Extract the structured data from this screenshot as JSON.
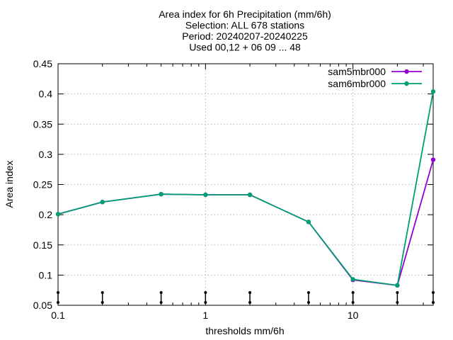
{
  "chart_data": {
    "type": "line",
    "title_lines": [
      "Area index  for 6h Precipitation (mm/6h)",
      "Selection: ALL    678 stations",
      "Period: 20240207-20240225",
      "Used 00,12 + 06 09 ... 48"
    ],
    "xlabel": "thresholds mm/6h",
    "ylabel": "Area index",
    "x_scale": "log",
    "xlim": [
      0.1,
      35
    ],
    "ylim": [
      0.05,
      0.45
    ],
    "x_ticks": [
      {
        "value": 0.1,
        "label": "0.1"
      },
      {
        "value": 1,
        "label": "1"
      },
      {
        "value": 10,
        "label": "10"
      }
    ],
    "y_ticks": [
      {
        "value": 0.05,
        "label": "0.05"
      },
      {
        "value": 0.1,
        "label": "0.1"
      },
      {
        "value": 0.15,
        "label": "0.15"
      },
      {
        "value": 0.2,
        "label": "0.2"
      },
      {
        "value": 0.25,
        "label": "0.25"
      },
      {
        "value": 0.3,
        "label": "0.3"
      },
      {
        "value": 0.35,
        "label": "0.35"
      },
      {
        "value": 0.4,
        "label": "0.4"
      },
      {
        "value": 0.45,
        "label": "0.45"
      }
    ],
    "grid": true,
    "legend_position": "top-right",
    "thresholds": [
      0.1,
      0.2,
      0.5,
      1,
      2,
      5,
      10,
      20,
      35
    ],
    "series": [
      {
        "name": "sam5mbr000",
        "color": "#9400d3",
        "x": [
          0.1,
          0.2,
          0.5,
          1,
          2,
          5,
          10,
          20,
          35
        ],
        "y": [
          0.201,
          0.221,
          0.234,
          0.233,
          0.233,
          0.188,
          0.092,
          0.083,
          0.291
        ]
      },
      {
        "name": "sam6mbr000",
        "color": "#009e73",
        "x": [
          0.1,
          0.2,
          0.5,
          1,
          2,
          5,
          10,
          20,
          35
        ],
        "y": [
          0.201,
          0.221,
          0.234,
          0.233,
          0.233,
          0.188,
          0.093,
          0.083,
          0.404
        ]
      }
    ]
  }
}
